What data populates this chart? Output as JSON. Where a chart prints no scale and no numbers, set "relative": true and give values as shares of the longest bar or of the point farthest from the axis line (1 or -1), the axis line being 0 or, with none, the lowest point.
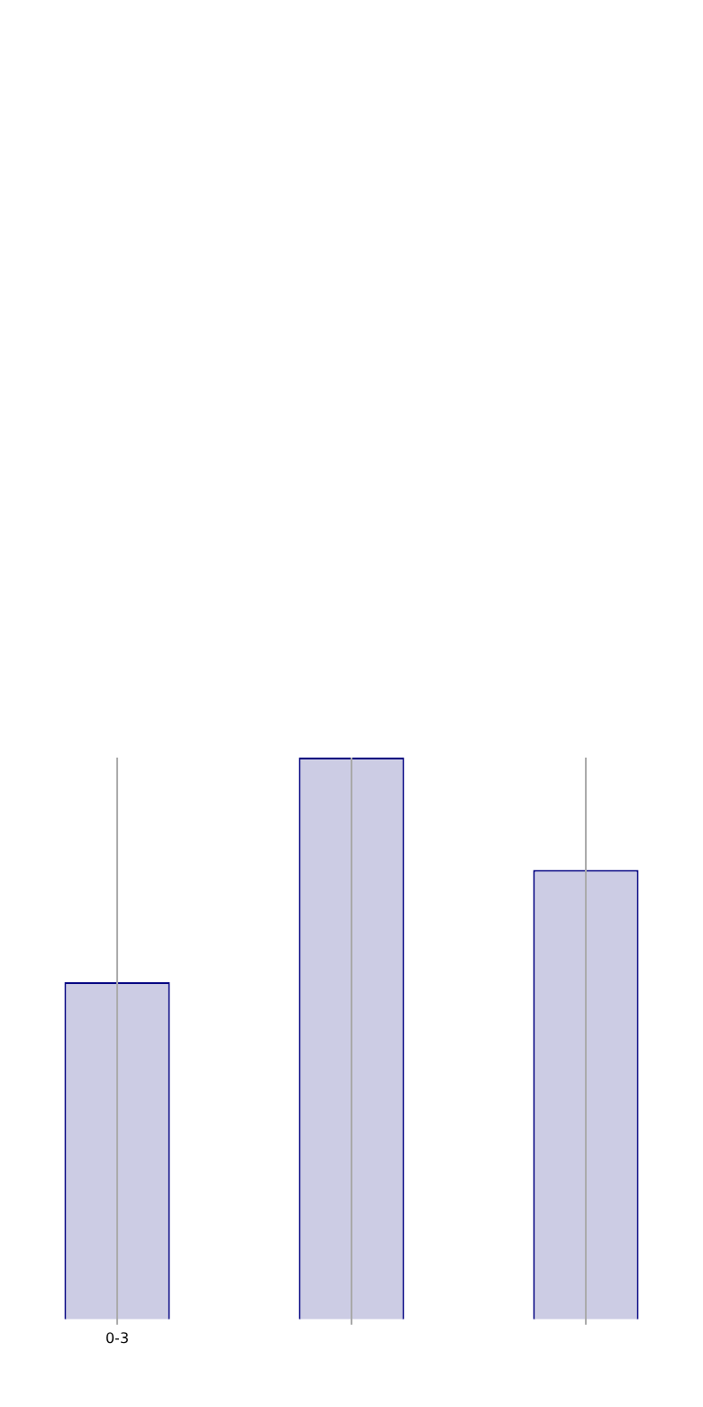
{
  "chart_data": {
    "type": "bar",
    "relative": true,
    "categories": [
      "0-3",
      null,
      null
    ],
    "values": [
      0.6,
      1,
      0.8
    ],
    "color": "#ccccE4",
    "grid": "x",
    "legend": false
  }
}
